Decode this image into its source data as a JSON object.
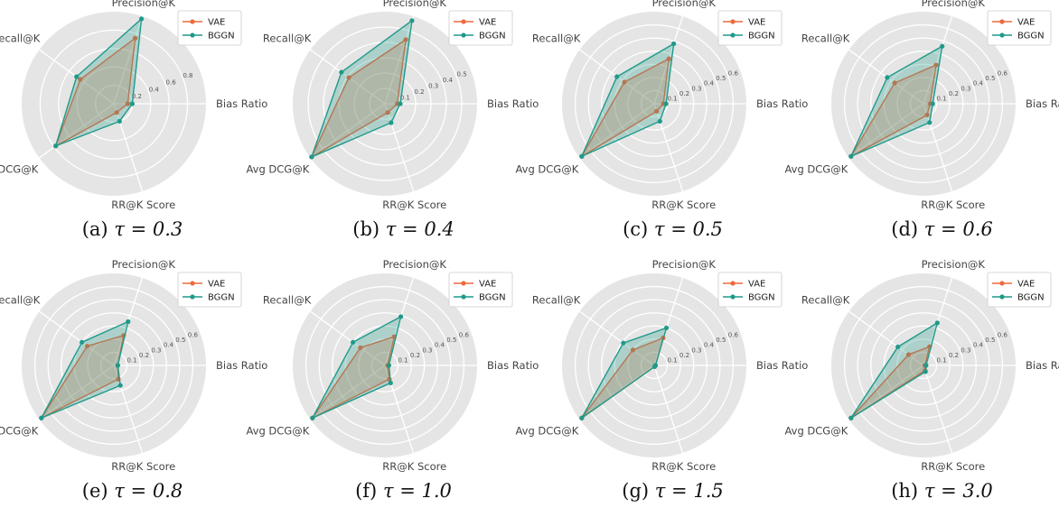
{
  "figure": {
    "axes": [
      "Precision@K",
      "Bias Ratio",
      "RR@K Score",
      "Avg DCG@K",
      "Recall@K"
    ],
    "series_names": [
      "VAE",
      "BGGN"
    ],
    "colors": {
      "VAE": "#ee6a3c",
      "BGGN": "#1f9a8a",
      "background": "#e5e5e5",
      "grid": "#ffffff"
    }
  },
  "chart_data": [
    {
      "type": "radar",
      "caption_label": "(a)",
      "caption_eq": "τ = 0.3",
      "rmax": 1.0,
      "ticks": [
        "0.2",
        "0.4",
        "0.6",
        "0.8"
      ],
      "tick_values": [
        0.2,
        0.4,
        0.6,
        0.8
      ],
      "series": [
        {
          "name": "VAE",
          "values": [
            0.75,
            0.15,
            0.1,
            0.78,
            0.45
          ]
        },
        {
          "name": "BGGN",
          "values": [
            0.97,
            0.2,
            0.2,
            0.78,
            0.5
          ]
        }
      ]
    },
    {
      "type": "radar",
      "caption_label": "(b)",
      "caption_eq": "τ = 0.4",
      "rmax": 0.6,
      "ticks": [
        "0.1",
        "0.2",
        "0.3",
        "0.4",
        "0.5"
      ],
      "tick_values": [
        0.1,
        0.2,
        0.3,
        0.4,
        0.5
      ],
      "series": [
        {
          "name": "VAE",
          "values": [
            0.44,
            0.08,
            0.06,
            0.59,
            0.29
          ]
        },
        {
          "name": "BGGN",
          "values": [
            0.57,
            0.1,
            0.13,
            0.59,
            0.35
          ]
        }
      ]
    },
    {
      "type": "radar",
      "caption_label": "(c)",
      "caption_eq": "τ = 0.5",
      "rmax": 0.7,
      "ticks": [
        "0.1",
        "0.2",
        "0.3",
        "0.4",
        "0.5",
        "0.6"
      ],
      "tick_values": [
        0.1,
        0.2,
        0.3,
        0.4,
        0.5,
        0.6
      ],
      "series": [
        {
          "name": "VAE",
          "values": [
            0.36,
            0.07,
            0.06,
            0.68,
            0.28
          ]
        },
        {
          "name": "BGGN",
          "values": [
            0.48,
            0.09,
            0.14,
            0.68,
            0.35
          ]
        }
      ]
    },
    {
      "type": "radar",
      "caption_label": "(d)",
      "caption_eq": "τ = 0.6",
      "rmax": 0.7,
      "ticks": [
        "0.1",
        "0.2",
        "0.3",
        "0.4",
        "0.5",
        "0.6"
      ],
      "tick_values": [
        0.1,
        0.2,
        0.3,
        0.4,
        0.5,
        0.6
      ],
      "series": [
        {
          "name": "VAE",
          "values": [
            0.31,
            0.05,
            0.09,
            0.68,
            0.27
          ]
        },
        {
          "name": "BGGN",
          "values": [
            0.46,
            0.07,
            0.15,
            0.68,
            0.34
          ]
        }
      ]
    },
    {
      "type": "radar",
      "caption_label": "(e)",
      "caption_eq": "τ = 0.8",
      "rmax": 0.7,
      "ticks": [
        "0.1",
        "0.2",
        "0.3",
        "0.4",
        "0.5",
        "0.6"
      ],
      "tick_values": [
        0.1,
        0.2,
        0.3,
        0.4,
        0.5,
        0.6
      ],
      "series": [
        {
          "name": "VAE",
          "values": [
            0.24,
            0.03,
            0.11,
            0.68,
            0.25
          ]
        },
        {
          "name": "BGGN",
          "values": [
            0.35,
            0.03,
            0.16,
            0.68,
            0.3
          ]
        }
      ]
    },
    {
      "type": "radar",
      "caption_label": "(f)",
      "caption_eq": "τ = 1.0",
      "rmax": 0.7,
      "ticks": [
        "0.1",
        "0.2",
        "0.3",
        "0.4",
        "0.5",
        "0.6"
      ],
      "tick_values": [
        0.1,
        0.2,
        0.3,
        0.4,
        0.5,
        0.6
      ],
      "series": [
        {
          "name": "VAE",
          "values": [
            0.23,
            0.02,
            0.11,
            0.68,
            0.23
          ]
        },
        {
          "name": "BGGN",
          "values": [
            0.39,
            0.03,
            0.14,
            0.68,
            0.3
          ]
        }
      ]
    },
    {
      "type": "radar",
      "caption_label": "(g)",
      "caption_eq": "τ = 1.5",
      "rmax": 0.7,
      "ticks": [
        "0.1",
        "0.2",
        "0.3",
        "0.4",
        "0.5",
        "0.6"
      ],
      "tick_values": [
        0.1,
        0.2,
        0.3,
        0.4,
        0.5,
        0.6
      ],
      "series": [
        {
          "name": "VAE",
          "values": [
            0.22,
            0.01,
            0.01,
            0.68,
            0.2
          ]
        },
        {
          "name": "BGGN",
          "values": [
            0.3,
            0.01,
            0.01,
            0.68,
            0.29
          ]
        }
      ]
    },
    {
      "type": "radar",
      "caption_label": "(h)",
      "caption_eq": "τ = 3.0",
      "rmax": 0.7,
      "ticks": [
        "0.1",
        "0.2",
        "0.3",
        "0.4",
        "0.5",
        "0.6"
      ],
      "tick_values": [
        0.1,
        0.2,
        0.3,
        0.4,
        0.5,
        0.6
      ],
      "series": [
        {
          "name": "VAE",
          "values": [
            0.15,
            0.01,
            0.04,
            0.68,
            0.14
          ]
        },
        {
          "name": "BGGN",
          "values": [
            0.34,
            0.02,
            0.05,
            0.68,
            0.24
          ]
        }
      ]
    }
  ]
}
